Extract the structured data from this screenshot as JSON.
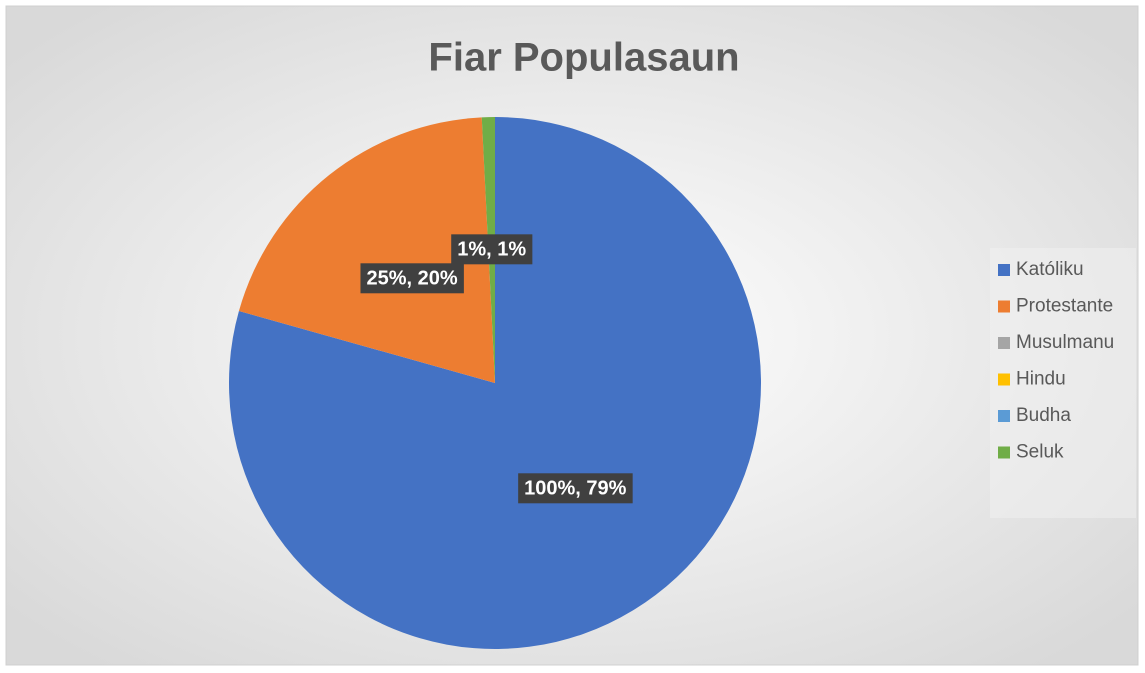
{
  "chart_data": {
    "type": "pie",
    "title": "Fiar Populasaun",
    "categories": [
      "Katóliku",
      "Protestante",
      "Musulmanu",
      "Hindu",
      "Budha",
      "Seluk"
    ],
    "values": [
      100,
      25,
      0,
      0,
      0,
      1
    ],
    "value_labels": [
      "100%, 79%",
      "25%, 20%",
      null,
      null,
      null,
      "1%, 1%"
    ],
    "colors": [
      "#4472c4",
      "#ed7d31",
      "#a5a5a5",
      "#ffc000",
      "#5b9bd5",
      "#70ad47"
    ],
    "legend": "right"
  }
}
